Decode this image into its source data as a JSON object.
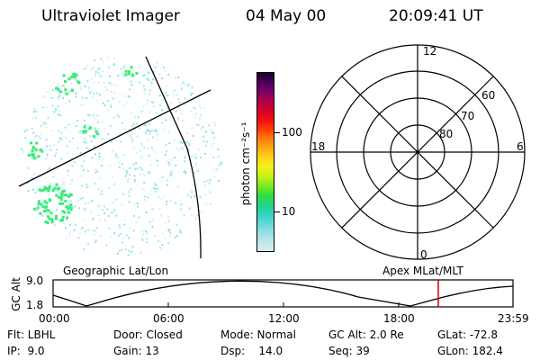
{
  "header": {
    "instrument": "Ultraviolet Imager",
    "date": "04 May 00",
    "time": "20:09:41 UT"
  },
  "image_panel": {
    "emission_color_hex": "#33ee77"
  },
  "colorbar": {
    "unit_label": "photon cm⁻²s⁻¹",
    "ticks": [
      "100",
      "10"
    ],
    "colors": [
      "#d9eef0",
      "#bfe6ea",
      "#94dfe4",
      "#5fd8d8",
      "#2fd2bf",
      "#22d47f",
      "#36de3d",
      "#7fea22",
      "#c8f018",
      "#f5f01a",
      "#ffd21a",
      "#ffa814",
      "#ff7a0e",
      "#ff3c0a",
      "#f01010",
      "#d2002a",
      "#b0004a",
      "#7a006a",
      "#4a0058",
      "#1c0030"
    ]
  },
  "polar_plot": {
    "mlt_labels": {
      "top": "12",
      "left": "18",
      "right": "6",
      "bottom": "0"
    },
    "lat_labels": [
      "60",
      "70",
      "80"
    ]
  },
  "timeline": {
    "left_title": "Geographic Lat/Lon",
    "right_title": "Apex MLat/MLT",
    "y_axis_label": "GC Alt",
    "y_ticks": [
      "9.0",
      "1.8"
    ],
    "x_ticks": [
      "00:00",
      "06:00",
      "12:00",
      "18:00",
      "23:59"
    ],
    "current_time_marker": "20:09:41",
    "marker_color": "#cc0000"
  },
  "info": {
    "row1": {
      "flt": "Flt: LBHL",
      "door": "Door: Closed",
      "mode": "Mode: Normal",
      "gcalt": "GC Alt: 2.0 Re",
      "glat": "GLat: -72.8"
    },
    "row2": {
      "ip": "IP:  9.0",
      "gain": "Gain: 13",
      "dsp": "Dsp:    14.0",
      "seq": "Seq: 39",
      "glon": "GLon: 182.4"
    }
  }
}
